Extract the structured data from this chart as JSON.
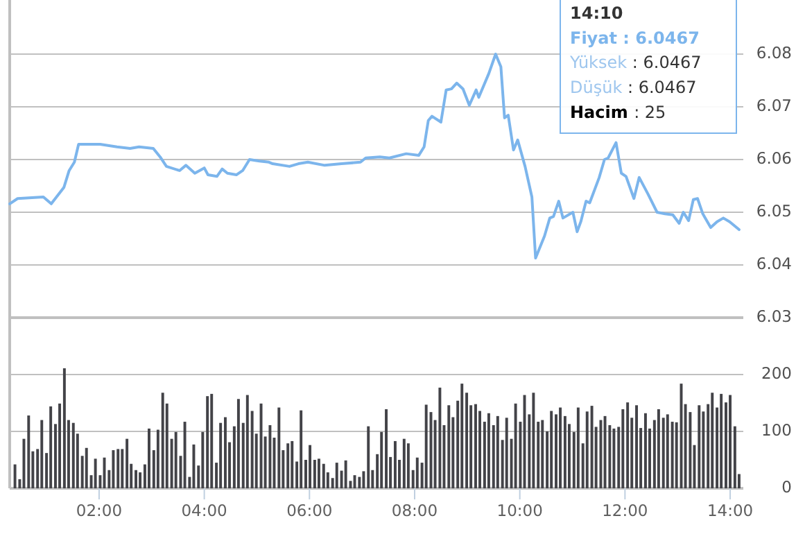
{
  "chart_data": [
    {
      "type": "line",
      "color": "#7cb5ec",
      "xlim": [
        0.3,
        14.25
      ],
      "ylim": [
        6.03,
        6.09
      ],
      "yticks": [
        6.03,
        6.04,
        6.05,
        6.06,
        6.07,
        6.08
      ],
      "tick_labels": "y",
      "grid": "y",
      "x": [
        0.3,
        0.45,
        0.94,
        1.09,
        1.33,
        1.43,
        1.53,
        1.61,
        2.02,
        2.34,
        2.59,
        2.76,
        3.03,
        3.16,
        3.28,
        3.53,
        3.65,
        3.82,
        4.0,
        4.07,
        4.24,
        4.34,
        4.44,
        4.61,
        4.73,
        4.86,
        5.05,
        5.23,
        5.3,
        5.62,
        5.79,
        5.97,
        6.29,
        6.61,
        6.97,
        7.07,
        7.34,
        7.52,
        7.84,
        8.08,
        8.18,
        8.26,
        8.33,
        8.5,
        8.6,
        8.7,
        8.8,
        8.92,
        9.04,
        9.17,
        9.22,
        9.41,
        9.54,
        9.64,
        9.71,
        9.78,
        9.88,
        9.96,
        10.1,
        10.23,
        10.3,
        10.47,
        10.57,
        10.64,
        10.74,
        10.82,
        11.01,
        11.09,
        11.16,
        11.26,
        11.33,
        11.51,
        11.61,
        11.68,
        11.83,
        11.93,
        12.02,
        12.17,
        12.27,
        12.44,
        12.61,
        12.76,
        12.91,
        13.03,
        13.11,
        13.21,
        13.3,
        13.38,
        13.48,
        13.63,
        13.75,
        13.87,
        13.99,
        14.17
      ],
      "values": [
        6.0516,
        6.0526,
        6.0529,
        6.0516,
        6.0547,
        6.0579,
        6.0595,
        6.0629,
        6.0629,
        6.0624,
        6.0621,
        6.0624,
        6.0621,
        6.0605,
        6.0587,
        6.0579,
        6.0589,
        6.0574,
        6.0584,
        6.0571,
        6.0568,
        6.0582,
        6.0574,
        6.0571,
        6.0579,
        6.06,
        6.0597,
        6.0595,
        6.0592,
        6.0587,
        6.0592,
        6.0595,
        6.0589,
        6.0592,
        6.0595,
        6.0603,
        6.0605,
        6.0603,
        6.0611,
        6.0608,
        6.0624,
        6.0674,
        6.0682,
        6.0671,
        6.0732,
        6.0734,
        6.0745,
        6.0734,
        6.0703,
        6.0732,
        6.0718,
        6.0763,
        6.08,
        6.0776,
        6.0679,
        6.0684,
        6.0618,
        6.0637,
        6.0587,
        6.0529,
        6.0413,
        6.0455,
        6.0489,
        6.0492,
        6.0521,
        6.0489,
        6.05,
        6.0463,
        6.0482,
        6.0521,
        6.0518,
        6.0566,
        6.06,
        6.0603,
        6.0632,
        6.0574,
        6.0568,
        6.0526,
        6.0566,
        6.0534,
        6.05,
        6.0497,
        6.0495,
        6.0479,
        6.05,
        6.0484,
        6.0524,
        6.0526,
        6.0497,
        6.0471,
        6.0482,
        6.0489,
        6.0482,
        6.0467
      ],
      "annotations": [
        "14:10",
        "Fiyat : 6.0467",
        "Yüksek : 6.0467",
        "Düşük : 6.0467",
        "Hacim : 25"
      ]
    },
    {
      "type": "bar",
      "color": "#434348",
      "xlim": [
        0.3,
        14.25
      ],
      "ylim": [
        0,
        300
      ],
      "yticks": [
        0,
        100,
        200
      ],
      "grid": "y",
      "xticks": [
        {
          "value": 2,
          "label": "02:00"
        },
        {
          "value": 4,
          "label": "04:00"
        },
        {
          "value": 6,
          "label": "06:00"
        },
        {
          "value": 8,
          "label": "08:00"
        },
        {
          "value": 10,
          "label": "10:00"
        },
        {
          "value": 12,
          "label": "12:00"
        },
        {
          "value": 14,
          "label": "14:00"
        }
      ],
      "x": [
        0.4,
        0.49,
        0.57,
        0.66,
        0.74,
        0.83,
        0.91,
        1.0,
        1.08,
        1.17,
        1.25,
        1.34,
        1.42,
        1.51,
        1.59,
        1.68,
        1.76,
        1.85,
        1.93,
        2.02,
        2.1,
        2.19,
        2.27,
        2.36,
        2.44,
        2.53,
        2.61,
        2.7,
        2.78,
        2.87,
        2.95,
        3.04,
        3.12,
        3.21,
        3.29,
        3.38,
        3.46,
        3.55,
        3.63,
        3.72,
        3.8,
        3.89,
        3.97,
        4.06,
        4.14,
        4.23,
        4.31,
        4.4,
        4.48,
        4.57,
        4.65,
        4.74,
        4.82,
        4.91,
        4.99,
        5.08,
        5.16,
        5.25,
        5.33,
        5.42,
        5.5,
        5.59,
        5.67,
        5.76,
        5.84,
        5.93,
        6.01,
        6.1,
        6.18,
        6.27,
        6.35,
        6.44,
        6.52,
        6.61,
        6.69,
        6.78,
        6.86,
        6.95,
        7.03,
        7.12,
        7.2,
        7.29,
        7.37,
        7.46,
        7.54,
        7.63,
        7.71,
        7.8,
        7.88,
        7.97,
        8.05,
        8.14,
        8.22,
        8.31,
        8.39,
        8.48,
        8.56,
        8.65,
        8.73,
        8.82,
        8.9,
        8.99,
        9.07,
        9.16,
        9.24,
        9.33,
        9.41,
        9.5,
        9.58,
        9.67,
        9.75,
        9.84,
        9.92,
        10.01,
        10.09,
        10.18,
        10.26,
        10.35,
        10.43,
        10.52,
        10.6,
        10.69,
        10.77,
        10.86,
        10.94,
        11.03,
        11.11,
        11.2,
        11.28,
        11.37,
        11.45,
        11.54,
        11.62,
        11.71,
        11.79,
        11.88,
        11.96,
        12.05,
        12.13,
        12.22,
        12.3,
        12.39,
        12.47,
        12.56,
        12.64,
        12.73,
        12.81,
        12.9,
        12.98,
        13.07,
        13.15,
        13.24,
        13.32,
        13.41,
        13.49,
        13.58,
        13.66,
        13.75,
        13.83,
        13.92,
        14.0,
        14.09,
        14.17
      ],
      "values": [
        42,
        16,
        87,
        128,
        65,
        69,
        120,
        62,
        144,
        113,
        149,
        211,
        120,
        115,
        96,
        57,
        71,
        23,
        52,
        23,
        54,
        32,
        67,
        69,
        69,
        87,
        43,
        32,
        28,
        42,
        105,
        67,
        103,
        168,
        149,
        87,
        99,
        57,
        117,
        20,
        77,
        40,
        99,
        162,
        166,
        45,
        115,
        125,
        81,
        109,
        157,
        115,
        164,
        136,
        96,
        149,
        91,
        111,
        89,
        142,
        67,
        79,
        83,
        47,
        137,
        50,
        76,
        50,
        52,
        43,
        28,
        18,
        45,
        31,
        49,
        13,
        23,
        20,
        30,
        109,
        32,
        60,
        99,
        139,
        55,
        83,
        50,
        87,
        79,
        32,
        54,
        45,
        147,
        134,
        120,
        177,
        111,
        146,
        125,
        154,
        184,
        168,
        146,
        148,
        136,
        117,
        132,
        111,
        127,
        85,
        124,
        87,
        149,
        117,
        164,
        130,
        168,
        117,
        120,
        100,
        136,
        130,
        142,
        127,
        113,
        99,
        142,
        79,
        135,
        145,
        108,
        120,
        127,
        111,
        105,
        108,
        139,
        151,
        124,
        146,
        106,
        132,
        105,
        120,
        139,
        124,
        130,
        117,
        116,
        184,
        148,
        134,
        76,
        146,
        135,
        148,
        168,
        142,
        166,
        151,
        164,
        109,
        25
      ]
    }
  ]
}
